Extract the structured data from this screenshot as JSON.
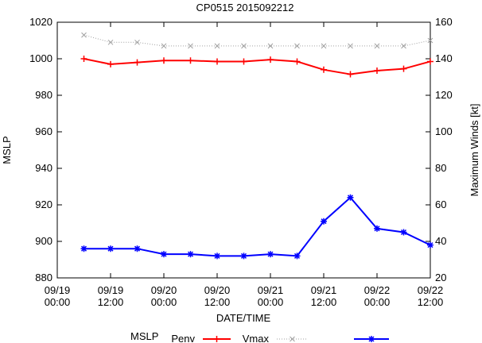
{
  "chart_data": {
    "type": "line",
    "title": "CP0515 2015092212",
    "xlabel": "DATE/TIME",
    "ylabel_left": "MSLP",
    "ylabel_right": "Maximum Winds [kt]",
    "x_ticks": [
      "09/19\n00:00",
      "09/19\n12:00",
      "09/20\n00:00",
      "09/20\n12:00",
      "09/21\n00:00",
      "09/21\n12:00",
      "09/22\n00:00",
      "09/22\n12:00"
    ],
    "x_hours": [
      0,
      12,
      24,
      36,
      48,
      60,
      72,
      84
    ],
    "xlim": [
      0,
      84
    ],
    "ylim_left": [
      880,
      1020
    ],
    "ylim_right": [
      20,
      160
    ],
    "yticks_left": [
      880,
      900,
      920,
      940,
      960,
      980,
      1000,
      1020
    ],
    "yticks_right": [
      20,
      40,
      60,
      80,
      100,
      120,
      140,
      160
    ],
    "grid": false,
    "legend": {
      "position": "bottom",
      "title": "MSLP",
      "entries": [
        "Penv",
        "Vmax",
        ""
      ]
    },
    "series": [
      {
        "name": "Penv",
        "axis": "left",
        "color": "#ff0000",
        "marker": "plus",
        "style": "solid",
        "x": [
          6,
          12,
          18,
          24,
          30,
          36,
          42,
          48,
          54,
          60,
          66,
          72,
          78,
          84
        ],
        "values": [
          1000,
          997,
          998,
          999,
          999,
          998.5,
          998.5,
          999.5,
          998.5,
          994,
          991.5,
          993.5,
          994.5,
          998.5
        ]
      },
      {
        "name": "Vmax",
        "axis": "right",
        "color": "#a0a0a0",
        "marker": "cross",
        "style": "dotted",
        "x": [
          6,
          12,
          18,
          24,
          30,
          36,
          42,
          48,
          54,
          60,
          66,
          72,
          78,
          84
        ],
        "values": [
          153,
          149,
          149,
          147,
          147,
          147,
          147,
          147,
          147,
          147,
          147,
          147,
          147,
          150
        ]
      },
      {
        "axis": "right",
        "color": "#0000ff",
        "marker": "star",
        "style": "solid",
        "x": [
          6,
          12,
          18,
          24,
          30,
          36,
          42,
          48,
          54,
          60,
          66,
          72,
          78,
          84
        ],
        "values": [
          36,
          36,
          36,
          33,
          33,
          32,
          32,
          33,
          32,
          51,
          64,
          47,
          45,
          38
        ]
      }
    ]
  }
}
